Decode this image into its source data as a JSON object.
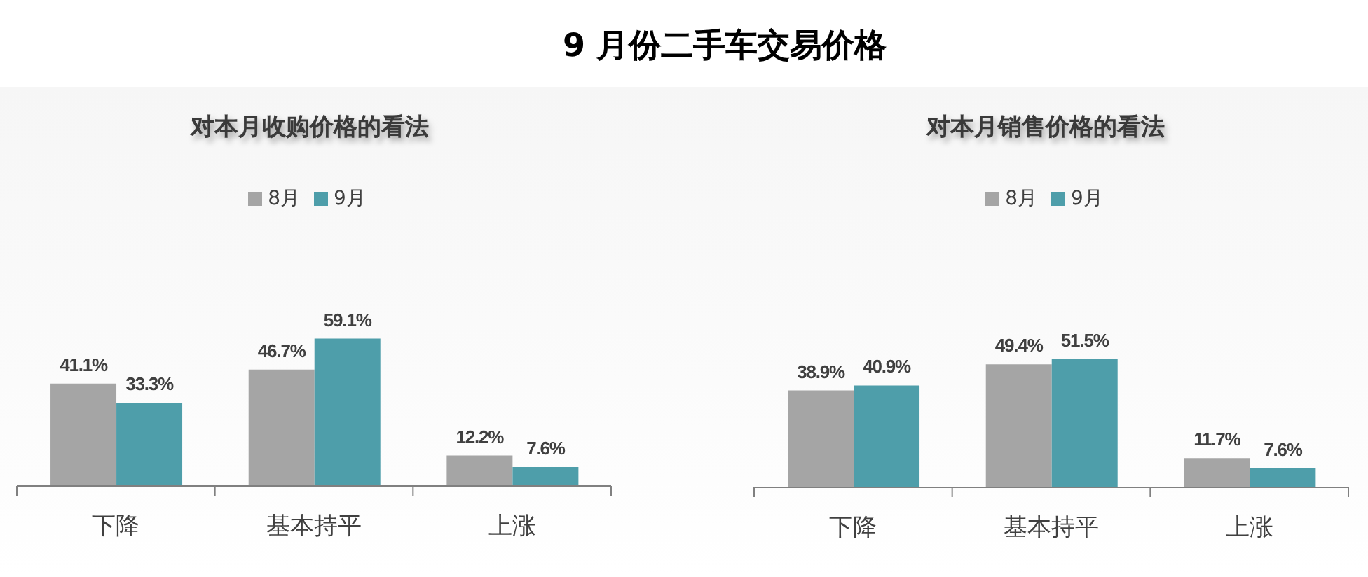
{
  "chart_data": [
    {
      "type": "bar",
      "title": "9 月份二手车交易价格",
      "subtitle": "对本月收购价格的看法",
      "categories": [
        "下降",
        "基本持平",
        "上涨"
      ],
      "series": [
        {
          "name": "8月",
          "color": "#a5a5a5",
          "values": [
            41.1,
            46.7,
            12.2
          ],
          "value_labels": [
            "41.1%",
            "46.7%",
            "12.2%"
          ]
        },
        {
          "name": "9月",
          "color": "#4e9eaa",
          "values": [
            33.3,
            59.1,
            7.6
          ],
          "value_labels": [
            "33.3%",
            "59.1%",
            "7.6%"
          ]
        }
      ],
      "legend": "top",
      "tick_labels": "x"
    },
    {
      "type": "bar",
      "subtitle": "对本月销售价格的看法",
      "categories": [
        "下降",
        "基本持平",
        "上涨"
      ],
      "series": [
        {
          "name": "8月",
          "color": "#a5a5a5",
          "values": [
            38.9,
            49.4,
            11.7
          ],
          "value_labels": [
            "38.9%",
            "49.4%",
            "11.7%"
          ]
        },
        {
          "name": "9月",
          "color": "#4e9eaa",
          "values": [
            40.9,
            51.5,
            7.6
          ],
          "value_labels": [
            "40.9%",
            "51.5%",
            "7.6%"
          ]
        }
      ],
      "legend": "top",
      "tick_labels": "x"
    }
  ]
}
